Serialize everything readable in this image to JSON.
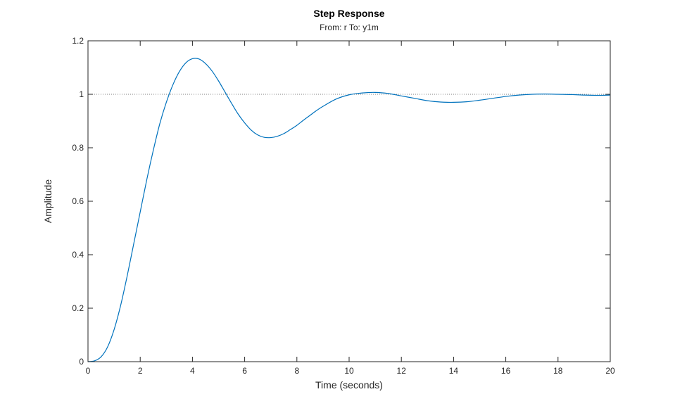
{
  "chart_data": {
    "type": "line",
    "title": "Step Response",
    "subtitle": "From: r  To: y1m",
    "xlabel": "Time (seconds)",
    "ylabel": "Amplitude",
    "xlim": [
      0,
      20
    ],
    "ylim": [
      0,
      1.2
    ],
    "xticks": [
      0,
      2,
      4,
      6,
      8,
      10,
      12,
      14,
      16,
      18,
      20
    ],
    "xtick_labels": [
      "0",
      "2",
      "4",
      "6",
      "8",
      "10",
      "12",
      "14",
      "16",
      "18",
      "20"
    ],
    "yticks": [
      0,
      0.2,
      0.4,
      0.6,
      0.8,
      1,
      1.2
    ],
    "ytick_labels": [
      "0",
      "0.2",
      "0.4",
      "0.6",
      "0.8",
      "1",
      "1.2"
    ],
    "grid": false,
    "reference_line": {
      "y": 1,
      "style": "dotted",
      "color": "#7f7f7f"
    },
    "series": [
      {
        "color": "#0072bd",
        "x": [
          0,
          0.25,
          0.5,
          0.75,
          1,
          1.25,
          1.5,
          1.75,
          2,
          2.25,
          2.5,
          2.75,
          3,
          3.25,
          3.5,
          3.75,
          4,
          4.25,
          4.5,
          4.75,
          5,
          5.25,
          5.5,
          5.75,
          6,
          6.25,
          6.5,
          6.75,
          7,
          7.25,
          7.5,
          7.75,
          8,
          8.25,
          8.5,
          8.75,
          9,
          9.5,
          10,
          10.5,
          11,
          11.5,
          12,
          12.5,
          13,
          13.5,
          14,
          14.5,
          15,
          15.5,
          16,
          16.5,
          17,
          17.5,
          18,
          18.5,
          19,
          19.5,
          20
        ],
        "y": [
          0,
          0.003,
          0.018,
          0.055,
          0.12,
          0.21,
          0.32,
          0.44,
          0.56,
          0.68,
          0.79,
          0.89,
          0.97,
          1.035,
          1.085,
          1.118,
          1.133,
          1.132,
          1.115,
          1.087,
          1.05,
          1.008,
          0.966,
          0.926,
          0.893,
          0.866,
          0.848,
          0.839,
          0.838,
          0.843,
          0.853,
          0.868,
          0.884,
          0.903,
          0.921,
          0.939,
          0.955,
          0.982,
          0.998,
          1.005,
          1.007,
          1.003,
          0.994,
          0.985,
          0.976,
          0.971,
          0.97,
          0.972,
          0.978,
          0.985,
          0.992,
          0.997,
          1.0,
          1.001,
          1.0,
          0.999,
          0.997,
          0.996,
          0.997
        ]
      }
    ]
  }
}
